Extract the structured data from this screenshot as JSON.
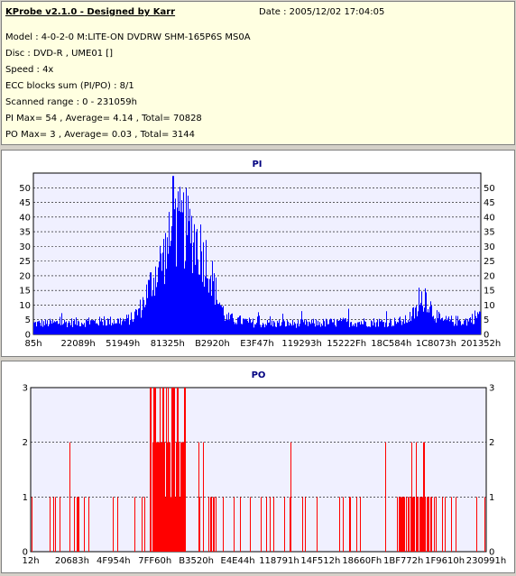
{
  "info": {
    "title": "KProbe v2.1.0 - Designed by Karr",
    "date": "Date : 2005/12/02 17:04:05",
    "model": "Model : 4-0-2-0 M:LITE-ON DVDRW SHM-165P6S MS0A",
    "disc": "Disc : DVD-R , UME01 []",
    "speed": "Speed : 4x",
    "ecc": "ECC blocks sum (PI/PO) : 8/1",
    "range": "Scanned range : 0 - 231059h",
    "pi": "PI Max= 54 , Average= 4.14 , Total= 70828",
    "po": "PO Max= 3 , Average= 0.03 , Total= 3144"
  },
  "colors": {
    "pi": "#0000ff",
    "po": "#ff0000",
    "plot_bg": "#f0f0ff",
    "grid": "#000000"
  },
  "chart_data": [
    {
      "type": "bar",
      "title": "PI",
      "ylim": [
        0,
        55
      ],
      "yticks": [
        0,
        5,
        10,
        15,
        20,
        25,
        30,
        35,
        40,
        45,
        50
      ],
      "xticks": [
        "85h",
        "22089h",
        "51949h",
        "81325h",
        "B2920h",
        "E3F47h",
        "119293h",
        "15222Fh",
        "18C584h",
        "1C8073h",
        "201352h"
      ],
      "profile": [
        [
          0,
          4
        ],
        [
          0.1,
          4.5
        ],
        [
          0.2,
          5
        ],
        [
          0.22,
          6
        ],
        [
          0.24,
          10
        ],
        [
          0.27,
          22
        ],
        [
          0.3,
          32
        ],
        [
          0.33,
          40
        ],
        [
          0.36,
          36
        ],
        [
          0.39,
          26
        ],
        [
          0.41,
          14
        ],
        [
          0.43,
          6
        ],
        [
          0.5,
          4
        ],
        [
          0.6,
          4
        ],
        [
          0.7,
          4.5
        ],
        [
          0.8,
          4.5
        ],
        [
          0.83,
          5
        ],
        [
          0.86,
          9
        ],
        [
          0.875,
          15
        ],
        [
          0.89,
          9
        ],
        [
          0.91,
          5
        ],
        [
          0.97,
          5
        ],
        [
          1,
          8
        ]
      ],
      "peak": 54,
      "peak_pos": 0.312
    },
    {
      "type": "bar",
      "title": "PO",
      "ylim": [
        0,
        3
      ],
      "yticks": [
        0,
        1,
        2,
        3
      ],
      "xticks": [
        "12h",
        "20683h",
        "4F954h",
        "7FF60h",
        "B3520h",
        "E4E44h",
        "118791h",
        "14F512h",
        "18660Fh",
        "1BF772h",
        "1F9610h",
        "230991h"
      ],
      "max": 3
    }
  ]
}
